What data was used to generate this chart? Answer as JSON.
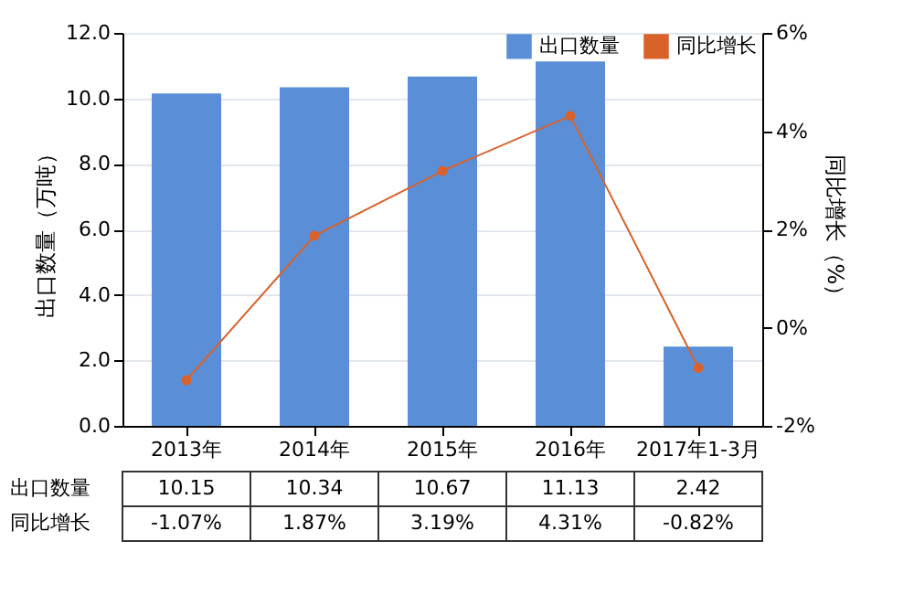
{
  "chart_data": {
    "type": "bar",
    "categories": [
      "2013年",
      "2014年",
      "2015年",
      "2016年",
      "2017年1-3月"
    ],
    "series": [
      {
        "name": "出口数量",
        "color": "#5a8fd8",
        "values": [
          10.15,
          10.34,
          10.67,
          11.13,
          2.42
        ],
        "value_labels": [
          "10.15",
          "10.34",
          "10.67",
          "11.13",
          "2.42"
        ]
      },
      {
        "name": "同比增长",
        "type": "line",
        "axis": "y2",
        "color": "#d9622b",
        "values": [
          -1.07,
          1.87,
          3.19,
          4.31,
          -0.82
        ],
        "value_labels": [
          "-1.07%",
          "1.87%",
          "3.19%",
          "4.31%",
          "-0.82%"
        ]
      }
    ],
    "ylabel": "出口数量（万吨）",
    "y2label": "同比增长（%）",
    "ylim": [
      0,
      12
    ],
    "yticks": [
      {
        "value": 0,
        "label": "0.0"
      },
      {
        "value": 2,
        "label": "2.0"
      },
      {
        "value": 4,
        "label": "4.0"
      },
      {
        "value": 6,
        "label": "6.0"
      },
      {
        "value": 8,
        "label": "8.0"
      },
      {
        "value": 10,
        "label": "10.0"
      },
      {
        "value": 12,
        "label": "12.0"
      }
    ],
    "y2lim": [
      -2,
      6
    ],
    "y2ticks": [
      {
        "value": -2,
        "label": "-2%"
      },
      {
        "value": 0,
        "label": "0%"
      },
      {
        "value": 2,
        "label": "2%"
      },
      {
        "value": 4,
        "label": "4%"
      },
      {
        "value": 6,
        "label": "6%"
      }
    ],
    "grid": "y",
    "legend": "top right",
    "marker": "circle"
  }
}
